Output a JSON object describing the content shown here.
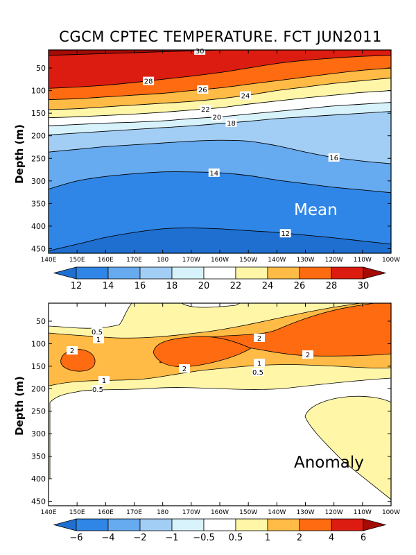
{
  "title": "CGCM CPTEC TEMPERATURE. FCT JUN2011",
  "chart_data": [
    {
      "type": "contour",
      "panel_label": "Mean",
      "ylabel": "Depth (m)",
      "x_ticks": [
        "140E",
        "150E",
        "160E",
        "170E",
        "180",
        "170W",
        "160W",
        "150W",
        "140W",
        "130W",
        "120W",
        "110W",
        "100W"
      ],
      "y_ticks": [
        50,
        100,
        150,
        200,
        250,
        300,
        350,
        400,
        450
      ],
      "ylim": [
        460,
        10
      ],
      "colorbar": {
        "ticks": [
          "12",
          "14",
          "16",
          "18",
          "20",
          "22",
          "24",
          "26",
          "28",
          "30"
        ],
        "colors": [
          "#1f6fd1",
          "#2f86e6",
          "#66aaef",
          "#a2cef6",
          "#d8f2fb",
          "#ffffff",
          "#fff6a8",
          "#ffbb45",
          "#ff6b10",
          "#dc1c10",
          "#a50b05"
        ]
      },
      "isotherms": [
        {
          "value": 30,
          "label": "30",
          "depths": [
            22,
            20,
            18,
            16,
            14,
            12,
            10,
            8,
            8,
            8,
            8,
            8,
            8
          ]
        },
        {
          "value": 28,
          "label": "28",
          "depths": [
            95,
            92,
            88,
            82,
            75,
            68,
            60,
            50,
            40,
            33,
            28,
            24,
            22
          ]
        },
        {
          "value": 26,
          "label": "26",
          "depths": [
            120,
            118,
            114,
            110,
            106,
            100,
            94,
            86,
            78,
            70,
            62,
            55,
            50
          ]
        },
        {
          "value": 24,
          "label": "24",
          "depths": [
            142,
            140,
            136,
            132,
            128,
            124,
            118,
            110,
            100,
            92,
            84,
            78,
            72
          ]
        },
        {
          "value": 22,
          "label": "22",
          "depths": [
            160,
            158,
            155,
            152,
            148,
            143,
            138,
            130,
            123,
            116,
            110,
            104,
            100
          ]
        },
        {
          "value": 20,
          "label": "20",
          "depths": [
            178,
            175,
            172,
            170,
            167,
            162,
            158,
            152,
            146,
            140,
            134,
            130,
            126
          ]
        },
        {
          "value": 18,
          "label": "18",
          "depths": [
            198,
            194,
            190,
            186,
            182,
            178,
            173,
            168,
            162,
            158,
            154,
            150,
            146
          ]
        },
        {
          "value": 16,
          "label": "16",
          "depths": [
            236,
            230,
            224,
            220,
            216,
            212,
            210,
            212,
            222,
            236,
            248,
            256,
            262
          ]
        },
        {
          "value": 14,
          "label": "14",
          "depths": [
            318,
            300,
            290,
            284,
            280,
            280,
            282,
            288,
            298,
            306,
            314,
            320,
            326
          ]
        },
        {
          "value": 12,
          "label": "12",
          "depths": [
            455,
            440,
            425,
            414,
            406,
            404,
            406,
            410,
            414,
            420,
            426,
            433,
            440
          ]
        }
      ]
    },
    {
      "type": "contour",
      "panel_label": "Anomaly",
      "ylabel": "Depth (m)",
      "x_ticks": [
        "140E",
        "150E",
        "160E",
        "170E",
        "180",
        "170W",
        "160W",
        "150W",
        "140W",
        "130W",
        "120W",
        "110W",
        "100W"
      ],
      "y_ticks": [
        50,
        100,
        150,
        200,
        250,
        300,
        350,
        400,
        450
      ],
      "ylim": [
        460,
        10
      ],
      "colorbar": {
        "ticks": [
          "−6",
          "−4",
          "−2",
          "−1",
          "−0.5",
          "0.5",
          "1",
          "2",
          "4",
          "6"
        ],
        "colors": [
          "#1f6fd1",
          "#2f86e6",
          "#66aaef",
          "#a2cef6",
          "#d8f2fb",
          "#ffffff",
          "#fff6a8",
          "#ffbb45",
          "#ff6b10",
          "#dc1c10",
          "#a50b05"
        ]
      },
      "contour_labels": [
        "0.5",
        "1",
        "2",
        "2",
        "2",
        "2",
        "1",
        "0.5",
        "1",
        "0.5"
      ]
    }
  ]
}
